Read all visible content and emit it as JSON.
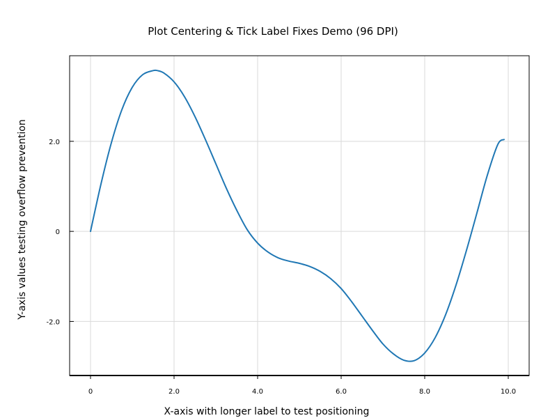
{
  "chart_data": {
    "type": "line",
    "title": "Plot Centering & Tick Label Fixes Demo (96 DPI)",
    "xlabel": "X-axis with longer label to test positioning",
    "ylabel": "Y-axis values testing overflow prevention",
    "xlim": [
      -0.5,
      10.5
    ],
    "ylim": [
      -3.2,
      3.9
    ],
    "grid": true,
    "x_ticks": [
      {
        "value": 0,
        "label": "0"
      },
      {
        "value": 2,
        "label": "2.0"
      },
      {
        "value": 4,
        "label": "4.0"
      },
      {
        "value": 6,
        "label": "6.0"
      },
      {
        "value": 8,
        "label": "8.0"
      },
      {
        "value": 10,
        "label": "10.0"
      }
    ],
    "y_ticks": [
      {
        "value": -2,
        "label": "-2.0"
      },
      {
        "value": 0,
        "label": "0"
      },
      {
        "value": 2,
        "label": "2.0"
      }
    ],
    "series": [
      {
        "color": "#1f77b4",
        "x": [
          0,
          0.25,
          0.5,
          0.75,
          1.0,
          1.25,
          1.5,
          1.6,
          1.75,
          2.0,
          2.25,
          2.5,
          2.75,
          3.0,
          3.25,
          3.5,
          3.75,
          4.0,
          4.25,
          4.5,
          4.75,
          5.0,
          5.25,
          5.5,
          5.75,
          6.0,
          6.25,
          6.5,
          6.75,
          7.0,
          7.25,
          7.5,
          7.75,
          8.0,
          8.25,
          8.5,
          8.75,
          9.0,
          9.25,
          9.5,
          9.75,
          9.9
        ],
        "y": [
          0,
          1.05,
          1.97,
          2.7,
          3.2,
          3.48,
          3.57,
          3.57,
          3.52,
          3.32,
          2.99,
          2.55,
          2.04,
          1.5,
          0.96,
          0.47,
          0.04,
          -0.26,
          -0.46,
          -0.59,
          -0.66,
          -0.71,
          -0.78,
          -0.89,
          -1.05,
          -1.27,
          -1.56,
          -1.88,
          -2.2,
          -2.5,
          -2.72,
          -2.86,
          -2.87,
          -2.7,
          -2.36,
          -1.85,
          -1.19,
          -0.42,
          0.41,
          1.25,
          1.93,
          2.04
        ]
      }
    ]
  }
}
